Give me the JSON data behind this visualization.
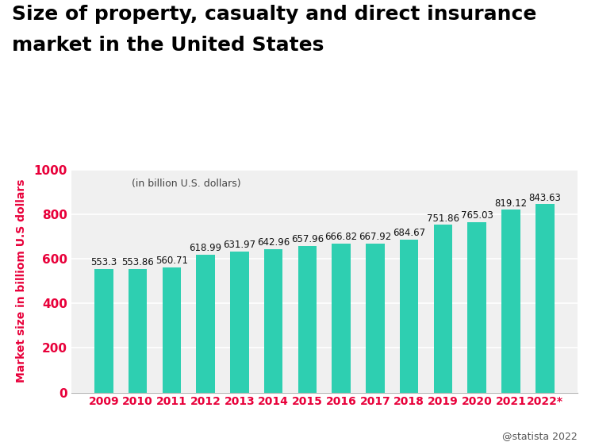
{
  "title_line1": "Size of property, casualty and direct insurance",
  "title_line2": "market in the United States",
  "subtitle": "(in billion U.S. dollars)",
  "ylabel": "Market size in billiom U.S dollars",
  "source": "@statista 2022",
  "categories": [
    "2009",
    "2010",
    "2011",
    "2012",
    "2013",
    "2014",
    "2015",
    "2016",
    "2017",
    "2018",
    "2019",
    "2020",
    "2021",
    "2022*"
  ],
  "values": [
    553.3,
    553.86,
    560.71,
    618.99,
    631.97,
    642.96,
    657.96,
    666.82,
    667.92,
    684.67,
    751.86,
    765.03,
    819.12,
    843.63
  ],
  "bar_color": "#2ecfb1",
  "tick_color": "#e8003a",
  "label_color": "#111111",
  "title_fontsize": 18,
  "label_fontsize": 8.5,
  "ylabel_fontsize": 10,
  "ytick_fontsize": 11,
  "xtick_fontsize": 10,
  "ylim": [
    0,
    1000
  ],
  "yticks": [
    0,
    200,
    400,
    600,
    800,
    1000
  ],
  "background_color": "#ffffff",
  "plot_bg_color": "#f0f0f0",
  "grid_color": "#ffffff"
}
